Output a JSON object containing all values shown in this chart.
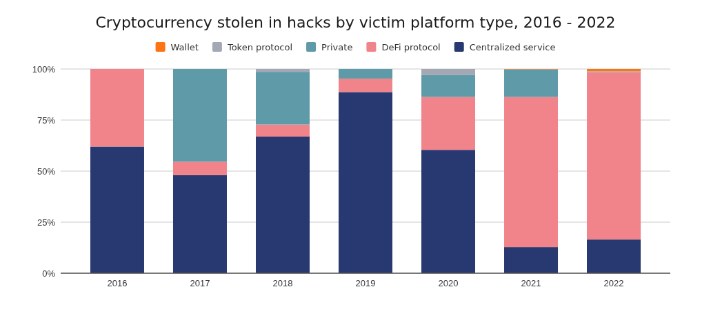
{
  "chart_data": {
    "type": "bar",
    "title": "Cryptocurrency stolen in hacks by victim platform type, 2016 - 2022",
    "categories": [
      "2016",
      "2017",
      "2018",
      "2019",
      "2020",
      "2021",
      "2022"
    ],
    "stacked": true,
    "series": [
      {
        "name": "Centralized service",
        "color": "#283870",
        "values": [
          62.0,
          48.0,
          66.9,
          88.7,
          60.4,
          12.8,
          16.5
        ]
      },
      {
        "name": "DeFi protocol",
        "color": "#f0848a",
        "values": [
          38.0,
          6.6,
          5.9,
          6.6,
          25.9,
          73.5,
          81.9
        ]
      },
      {
        "name": "Private",
        "color": "#5e9aa8",
        "values": [
          0,
          45.4,
          25.8,
          4.7,
          10.7,
          13.5,
          0
        ]
      },
      {
        "name": "Token protocol",
        "color": "#a3a8b4",
        "values": [
          0,
          0,
          1.4,
          0,
          3.0,
          0,
          0.5
        ]
      },
      {
        "name": "Wallet",
        "color": "#fd7412",
        "values": [
          0,
          0,
          0,
          0,
          0,
          0.2,
          1.1
        ]
      }
    ],
    "ylim": [
      0,
      100
    ],
    "yticks": [
      {
        "value": 0,
        "label": "0%"
      },
      {
        "value": 25,
        "label": "25%"
      },
      {
        "value": 50,
        "label": "50%"
      },
      {
        "value": 75,
        "label": "75%"
      },
      {
        "value": 100,
        "label": "100%"
      }
    ],
    "grid": "y",
    "legend": "top"
  }
}
